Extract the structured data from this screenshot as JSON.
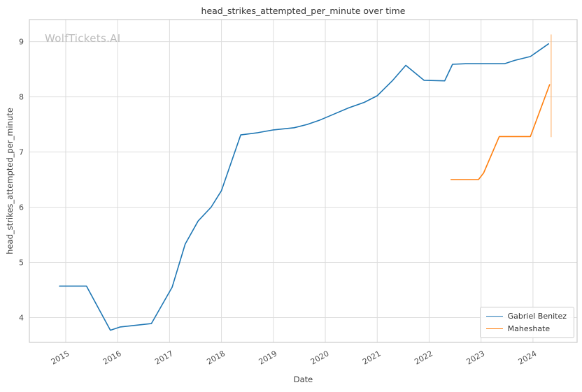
{
  "watermark": "WolfTickets.AI",
  "chart_data": {
    "type": "line",
    "title": "head_strikes_attempted_per_minute over time",
    "xlabel": "Date",
    "ylabel": "head_strikes_attempted_per_minute",
    "grid": true,
    "legend_position": "lower right",
    "xlim": [
      2014.3,
      2024.85
    ],
    "ylim": [
      3.55,
      9.4
    ],
    "x_ticks": [
      2015,
      2016,
      2017,
      2018,
      2019,
      2020,
      2021,
      2022,
      2023,
      2024
    ],
    "y_ticks": [
      4,
      5,
      6,
      7,
      8,
      9
    ],
    "series": [
      {
        "name": "Gabriel Benitez",
        "color": "#1f77b4",
        "points": [
          [
            2014.88,
            4.57
          ],
          [
            2015.4,
            4.57
          ],
          [
            2015.86,
            3.77
          ],
          [
            2016.05,
            3.83
          ],
          [
            2016.65,
            3.89
          ],
          [
            2017.05,
            4.55
          ],
          [
            2017.3,
            5.33
          ],
          [
            2017.55,
            5.75
          ],
          [
            2017.8,
            6.0
          ],
          [
            2018.0,
            6.3
          ],
          [
            2018.37,
            7.31
          ],
          [
            2018.7,
            7.35
          ],
          [
            2019.0,
            7.4
          ],
          [
            2019.4,
            7.44
          ],
          [
            2019.65,
            7.5
          ],
          [
            2019.9,
            7.58
          ],
          [
            2020.15,
            7.68
          ],
          [
            2020.45,
            7.8
          ],
          [
            2020.75,
            7.9
          ],
          [
            2021.0,
            8.02
          ],
          [
            2021.3,
            8.3
          ],
          [
            2021.55,
            8.57
          ],
          [
            2021.9,
            8.3
          ],
          [
            2022.3,
            8.29
          ],
          [
            2022.45,
            8.59
          ],
          [
            2022.7,
            8.6
          ],
          [
            2023.1,
            8.6
          ],
          [
            2023.45,
            8.6
          ],
          [
            2023.65,
            8.66
          ],
          [
            2023.95,
            8.73
          ],
          [
            2024.3,
            8.96
          ]
        ]
      },
      {
        "name": "Maheshate",
        "color": "#ff7f0e",
        "points": [
          [
            2022.42,
            6.5
          ],
          [
            2022.75,
            6.5
          ],
          [
            2022.95,
            6.5
          ],
          [
            2023.05,
            6.62
          ],
          [
            2023.35,
            7.28
          ],
          [
            2023.6,
            7.28
          ],
          [
            2023.95,
            7.28
          ],
          [
            2024.32,
            8.22
          ]
        ]
      }
    ],
    "errorbar": {
      "series": "Maheshate",
      "x": 2024.35,
      "y_min": 7.27,
      "y_max": 9.13,
      "color": "#ffb97a"
    }
  }
}
